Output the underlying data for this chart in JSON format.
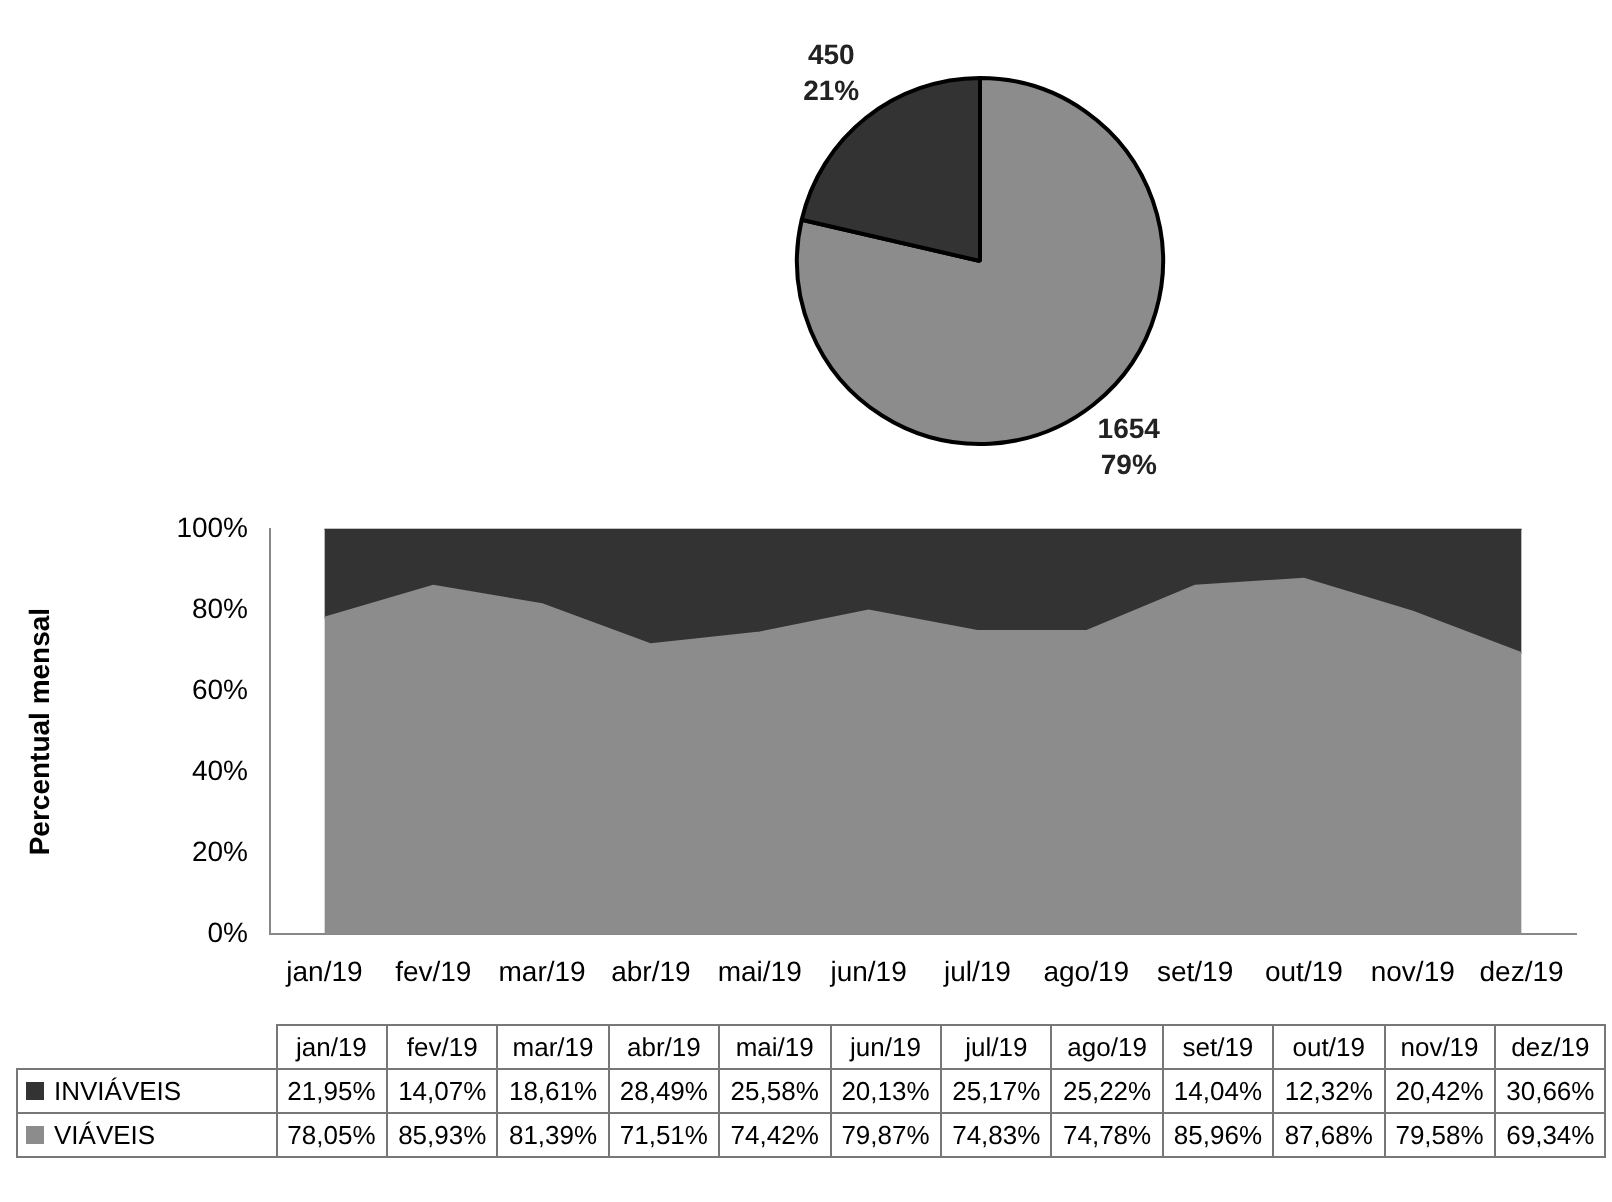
{
  "chart_data": [
    {
      "type": "pie",
      "categories": [
        null,
        null
      ],
      "values": [
        1654,
        450
      ],
      "colors": [
        "#8c8c8c",
        "#333333"
      ],
      "value_labels": [
        "1654\n79%",
        "450\n21%"
      ]
    },
    {
      "type": "area",
      "stacked": true,
      "ylabel": "Percentual mensal",
      "legend": "bottom",
      "categories": [
        "jan/19",
        "fev/19",
        "mar/19",
        "abr/19",
        "mai/19",
        "jun/19",
        "jul/19",
        "ago/19",
        "set/19",
        "out/19",
        "nov/19",
        "dez/19"
      ],
      "ylim": [
        0,
        100
      ],
      "yticks": [
        {
          "value": 0,
          "label": "0%"
        },
        {
          "value": 20,
          "label": "20%"
        },
        {
          "value": 40,
          "label": "40%"
        },
        {
          "value": 60,
          "label": "60%"
        },
        {
          "value": 80,
          "label": "80%"
        },
        {
          "value": 100,
          "label": "100%"
        }
      ],
      "series": [
        {
          "name": "VIÁVEIS",
          "color": "#8c8c8c",
          "values": [
            78.05,
            85.93,
            81.39,
            71.51,
            74.42,
            79.87,
            74.83,
            74.78,
            85.96,
            87.68,
            79.58,
            69.34
          ],
          "value_labels": [
            "78,05%",
            "85,93%",
            "81,39%",
            "71,51%",
            "74,42%",
            "79,87%",
            "74,83%",
            "74,78%",
            "85,96%",
            "87,68%",
            "79,58%",
            "69,34%"
          ]
        },
        {
          "name": "INVIÁVEIS",
          "color": "#333333",
          "values": [
            21.95,
            14.07,
            18.61,
            28.49,
            25.58,
            20.13,
            25.17,
            25.22,
            14.04,
            12.32,
            20.42,
            30.66
          ],
          "value_labels": [
            "21,95%",
            "14,07%",
            "18,61%",
            "28,49%",
            "25,58%",
            "20,13%",
            "25,17%",
            "25,22%",
            "14,04%",
            "12,32%",
            "20,42%",
            "30,66%"
          ]
        }
      ]
    }
  ]
}
